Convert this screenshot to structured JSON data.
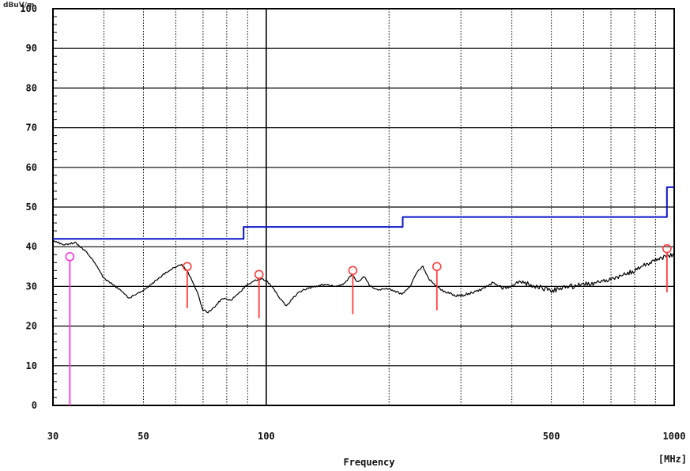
{
  "chart_data": {
    "type": "line",
    "title": "",
    "corner_label": "dBuV/m",
    "xlabel": "Frequency",
    "xunit": "[MHz]",
    "xscale": "log",
    "xlim": [
      30,
      1000
    ],
    "ylim": [
      0,
      100
    ],
    "x_tick_labels": [
      {
        "value": 30,
        "label": "30"
      },
      {
        "value": 50,
        "label": "50"
      },
      {
        "value": 100,
        "label": "100"
      },
      {
        "value": 500,
        "label": "500"
      },
      {
        "value": 1000,
        "label": "1000"
      }
    ],
    "y_tick_labels": [
      "0",
      "10",
      "20",
      "30",
      "40",
      "50",
      "60",
      "70",
      "80",
      "90",
      "100"
    ],
    "grid": true,
    "colors": {
      "trace": "#000000",
      "limit": "#0a14c8",
      "marker": "#ff3b3b",
      "qp_marker": "#ff33dd"
    },
    "series": [
      {
        "id": "limit",
        "style": "step",
        "x": [
          30,
          88,
          88,
          216,
          216,
          960,
          960,
          1000
        ],
        "values": [
          42,
          42,
          45,
          45,
          47.5,
          47.5,
          55,
          55
        ]
      },
      {
        "id": "trace",
        "style": "line",
        "x": [
          30,
          32,
          34,
          36,
          38,
          40,
          42,
          44,
          46,
          48,
          50,
          53,
          56,
          59,
          62,
          64,
          66,
          68,
          70,
          72,
          75,
          78,
          82,
          86,
          90,
          94,
          97,
          100,
          104,
          108,
          112,
          116,
          120,
          126,
          132,
          140,
          148,
          156,
          162,
          168,
          174,
          180,
          188,
          196,
          205,
          215,
          225,
          235,
          242,
          250,
          258,
          270,
          285,
          300,
          320,
          340,
          360,
          380,
          400,
          420,
          440,
          460,
          480,
          500,
          530,
          560,
          600,
          650,
          700,
          750,
          800,
          850,
          900,
          950,
          1000
        ],
        "values": [
          41.5,
          40.5,
          41.0,
          39.0,
          36.0,
          32.0,
          30.5,
          29.0,
          27.0,
          28.0,
          29.0,
          31.0,
          33.0,
          34.5,
          35.5,
          34.0,
          31.0,
          28.0,
          24.0,
          23.5,
          25.0,
          27.0,
          26.5,
          28.5,
          30.5,
          31.5,
          32.0,
          31.5,
          29.5,
          27.0,
          25.0,
          27.0,
          28.5,
          29.5,
          30.0,
          30.5,
          30.0,
          30.8,
          33.0,
          31.0,
          32.5,
          30.0,
          29.0,
          29.5,
          29.0,
          28.0,
          30.0,
          34.0,
          35.0,
          32.0,
          30.5,
          29.0,
          28.0,
          27.5,
          28.5,
          29.5,
          31.0,
          29.5,
          30.0,
          31.5,
          30.5,
          30.0,
          29.5,
          29.0,
          29.5,
          30.0,
          30.5,
          31.0,
          32.0,
          33.0,
          34.0,
          35.5,
          36.5,
          37.5,
          38.0
        ]
      }
    ],
    "peak_markers": [
      {
        "x": 64,
        "values": [
          35.0,
          24.5
        ]
      },
      {
        "x": 96,
        "values": [
          33.0,
          22.0
        ]
      },
      {
        "x": 163,
        "values": [
          34.0,
          23.0
        ]
      },
      {
        "x": 262,
        "values": [
          35.0,
          24.0
        ]
      },
      {
        "x": 960,
        "values": [
          39.5,
          28.5
        ]
      }
    ],
    "qp_markers": [
      {
        "x": 33,
        "values": [
          37.5,
          0
        ]
      }
    ]
  }
}
